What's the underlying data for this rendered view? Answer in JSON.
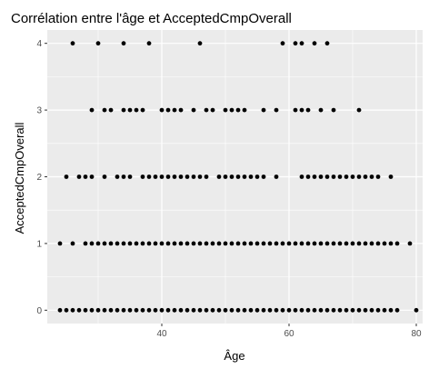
{
  "chart_data": {
    "type": "scatter",
    "title": "Corrélation entre l'âge et AcceptedCmpOverall",
    "xlabel": "Âge",
    "ylabel": "AcceptedCmpOverall",
    "xlim": [
      22,
      81
    ],
    "ylim": [
      -0.2,
      4.2
    ],
    "x_ticks": [
      40,
      60,
      80
    ],
    "y_ticks": [
      0,
      1,
      2,
      3,
      4
    ],
    "grid": true,
    "panel_color": "#EBEBEB",
    "grid_color": "#FFFFFF",
    "point_color": "#000000",
    "points": [
      {
        "y": 4,
        "x": [
          26,
          30,
          34,
          38,
          46,
          59,
          61,
          62,
          64,
          66
        ]
      },
      {
        "y": 3,
        "x": [
          29,
          31,
          32,
          34,
          35,
          36,
          37,
          40,
          41,
          42,
          43,
          45,
          47,
          48,
          50,
          51,
          52,
          53,
          56,
          58,
          61,
          62,
          63,
          65,
          67,
          71
        ]
      },
      {
        "y": 2,
        "x": [
          25,
          27,
          28,
          29,
          31,
          33,
          34,
          35,
          37,
          38,
          39,
          40,
          41,
          42,
          43,
          44,
          45,
          46,
          47,
          49,
          50,
          51,
          52,
          53,
          54,
          55,
          56,
          58,
          62,
          63,
          64,
          65,
          66,
          67,
          68,
          69,
          70,
          71,
          72,
          73,
          74,
          76
        ]
      },
      {
        "y": 1,
        "x": [
          24,
          26,
          28,
          29,
          30,
          31,
          32,
          33,
          34,
          35,
          36,
          37,
          38,
          39,
          40,
          41,
          42,
          43,
          44,
          45,
          46,
          47,
          48,
          49,
          50,
          51,
          52,
          53,
          54,
          55,
          56,
          57,
          58,
          59,
          60,
          61,
          62,
          63,
          64,
          65,
          66,
          67,
          68,
          69,
          70,
          71,
          72,
          73,
          74,
          75,
          76,
          77,
          79
        ]
      },
      {
        "y": 0,
        "x": [
          24,
          25,
          26,
          27,
          28,
          29,
          30,
          31,
          32,
          33,
          34,
          35,
          36,
          37,
          38,
          39,
          40,
          41,
          42,
          43,
          44,
          45,
          46,
          47,
          48,
          49,
          50,
          51,
          52,
          53,
          54,
          55,
          56,
          57,
          58,
          59,
          60,
          61,
          62,
          63,
          64,
          65,
          66,
          67,
          68,
          69,
          70,
          71,
          72,
          73,
          74,
          75,
          76,
          77,
          80
        ]
      }
    ]
  }
}
